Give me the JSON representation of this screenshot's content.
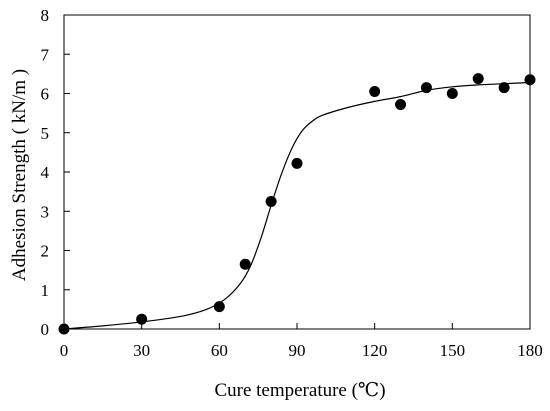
{
  "chart_data": {
    "type": "scatter",
    "title": "",
    "xlabel": "Cure temperature (℃)",
    "ylabel": "Adhesion Strength ( kN/m )",
    "xlim": [
      0,
      180
    ],
    "ylim": [
      0,
      8
    ],
    "xticks": [
      0,
      30,
      60,
      90,
      120,
      150,
      180
    ],
    "yticks": [
      0,
      1,
      2,
      3,
      4,
      5,
      6,
      7,
      8
    ],
    "grid": false,
    "legend": "none",
    "marker_color": "#000000",
    "series": [
      {
        "kind": "markers",
        "points": [
          {
            "x": 0,
            "y": 0.0
          },
          {
            "x": 30,
            "y": 0.25
          },
          {
            "x": 60,
            "y": 0.57
          },
          {
            "x": 70,
            "y": 1.65
          },
          {
            "x": 80,
            "y": 3.25
          },
          {
            "x": 90,
            "y": 4.22
          },
          {
            "x": 120,
            "y": 6.05
          },
          {
            "x": 130,
            "y": 5.72
          },
          {
            "x": 140,
            "y": 6.15
          },
          {
            "x": 150,
            "y": 6.0
          },
          {
            "x": 160,
            "y": 6.38
          },
          {
            "x": 170,
            "y": 6.15
          },
          {
            "x": 180,
            "y": 6.35
          }
        ]
      },
      {
        "kind": "fit-line",
        "points": [
          {
            "x": 0,
            "y": 0.0
          },
          {
            "x": 15,
            "y": 0.08
          },
          {
            "x": 30,
            "y": 0.18
          },
          {
            "x": 45,
            "y": 0.32
          },
          {
            "x": 55,
            "y": 0.5
          },
          {
            "x": 62,
            "y": 0.75
          },
          {
            "x": 68,
            "y": 1.15
          },
          {
            "x": 72,
            "y": 1.6
          },
          {
            "x": 76,
            "y": 2.3
          },
          {
            "x": 80,
            "y": 3.15
          },
          {
            "x": 84,
            "y": 3.95
          },
          {
            "x": 88,
            "y": 4.6
          },
          {
            "x": 92,
            "y": 5.05
          },
          {
            "x": 96,
            "y": 5.3
          },
          {
            "x": 100,
            "y": 5.45
          },
          {
            "x": 110,
            "y": 5.65
          },
          {
            "x": 120,
            "y": 5.8
          },
          {
            "x": 130,
            "y": 5.92
          },
          {
            "x": 140,
            "y": 6.08
          },
          {
            "x": 150,
            "y": 6.17
          },
          {
            "x": 160,
            "y": 6.22
          },
          {
            "x": 170,
            "y": 6.25
          },
          {
            "x": 180,
            "y": 6.28
          }
        ]
      }
    ]
  }
}
